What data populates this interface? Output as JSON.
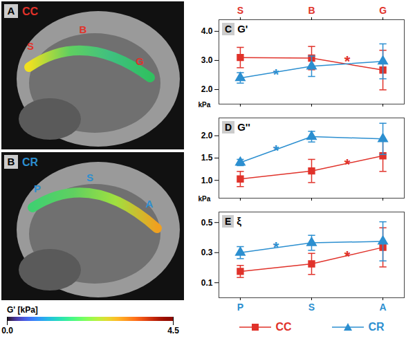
{
  "images": [
    {
      "panel": "A",
      "name": "CC",
      "color": "#e0322a",
      "regions": [
        "S",
        "B",
        "G"
      ]
    },
    {
      "panel": "B",
      "name": "CR",
      "color": "#2c8fd0",
      "regions": [
        "P",
        "S",
        "A"
      ]
    }
  ],
  "colorbar": {
    "label": "G' [kPa]",
    "range": [
      0,
      4.5
    ],
    "ticks": [
      {
        "value": 0,
        "label": "0.0"
      },
      {
        "value": 4.5,
        "label": "4.5"
      }
    ]
  },
  "chart_data": [
    {
      "type": "line",
      "panel": "C",
      "title": "G'",
      "ylabel": "kPa",
      "categories": [
        "P",
        "S",
        "A"
      ],
      "top_categories": [
        "S",
        "B",
        "G"
      ],
      "tick_labels": "y",
      "ylim": [
        1.5,
        4.4
      ],
      "yticks": [
        {
          "value": 2,
          "label": "2.0"
        },
        {
          "value": 3,
          "label": "3.0"
        },
        {
          "value": 4,
          "label": "4.0"
        }
      ],
      "series": [
        {
          "name": "CC",
          "color": "#e0322a",
          "marker": "square",
          "values": [
            3.1,
            3.08,
            2.67
          ],
          "errors": [
            0.35,
            0.4,
            0.68
          ]
        },
        {
          "name": "CR",
          "color": "#2c8fd0",
          "marker": "triangle",
          "values": [
            2.4,
            2.8,
            2.97
          ],
          "errors": [
            0.18,
            0.35,
            0.6
          ]
        }
      ],
      "annotations": [
        {
          "text": "*",
          "x": 0.5,
          "y": 2.65,
          "color": "#2c8fd0"
        },
        {
          "text": "*",
          "x": 1.5,
          "y": 3.1,
          "color": "#e0322a"
        }
      ]
    },
    {
      "type": "line",
      "panel": "D",
      "title": "G''",
      "ylabel": "kPa",
      "categories": [
        "P",
        "S",
        "A"
      ],
      "tick_labels": "y",
      "ylim": [
        0.6,
        2.4
      ],
      "yticks": [
        {
          "value": 1,
          "label": "1.0"
        },
        {
          "value": 1.5,
          "label": "1.5"
        },
        {
          "value": 2,
          "label": "2.0"
        }
      ],
      "series": [
        {
          "name": "CC",
          "color": "#e0322a",
          "marker": "square",
          "values": [
            1.03,
            1.21,
            1.55
          ],
          "errors": [
            0.17,
            0.26,
            0.35
          ]
        },
        {
          "name": "CR",
          "color": "#2c8fd0",
          "marker": "triangle",
          "values": [
            1.4,
            1.98,
            1.93
          ],
          "errors": [
            0.07,
            0.12,
            0.35
          ]
        }
      ],
      "annotations": [
        {
          "text": "*",
          "x": 0.5,
          "y": 1.75,
          "color": "#2c8fd0"
        },
        {
          "text": "*",
          "x": 1.5,
          "y": 1.45,
          "color": "#e0322a"
        }
      ]
    },
    {
      "type": "line",
      "panel": "E",
      "title": "ξ",
      "categories": [
        "P",
        "S",
        "A"
      ],
      "legend": "bottom",
      "ylim": [
        0.0,
        0.57
      ],
      "yticks": [
        0.1,
        0.3,
        0.5
      ],
      "series": [
        {
          "name": "CC",
          "color": "#e0322a",
          "marker": "square",
          "values": [
            0.175,
            0.225,
            0.335
          ],
          "errors": [
            0.04,
            0.07,
            0.13
          ]
        },
        {
          "name": "CR",
          "color": "#2c8fd0",
          "marker": "triangle",
          "values": [
            0.3,
            0.365,
            0.375
          ],
          "errors": [
            0.04,
            0.05,
            0.13
          ]
        }
      ],
      "annotations": [
        {
          "text": "*",
          "x": 0.5,
          "y": 0.36,
          "color": "#2c8fd0"
        },
        {
          "text": "*",
          "x": 1.5,
          "y": 0.3,
          "color": "#e0322a"
        }
      ]
    }
  ]
}
